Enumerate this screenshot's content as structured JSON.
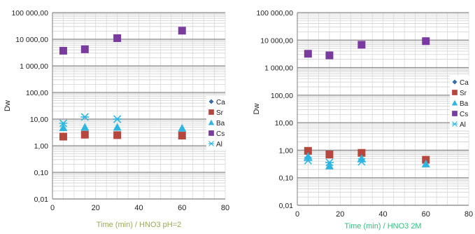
{
  "chart_data": [
    {
      "type": "scatter",
      "yscale": "log",
      "ylim": [
        0.01,
        100000
      ],
      "xlim": [
        0,
        80
      ],
      "xticks": [
        0,
        20,
        40,
        60,
        80
      ],
      "xtick_labels": [
        "0",
        "20",
        "40",
        "60",
        "80"
      ],
      "ytick_labels": [
        "0,01",
        "0,10",
        "1,00",
        "10,00",
        "100,00",
        "1 000,00",
        "10 000,00",
        "100 000,00"
      ],
      "xlabel": "Time (min) / HNO3 pH=2",
      "xlabel_color": "#9aa85a",
      "ylabel": "Dw",
      "grid": true,
      "legend": "right",
      "series": [
        {
          "name": "Ca",
          "marker": "diamond",
          "color": "#3b6ea8",
          "x": [],
          "y": []
        },
        {
          "name": "Sr",
          "marker": "square",
          "color": "#b5473f",
          "x": [
            5,
            15,
            30,
            60
          ],
          "y": [
            2.2,
            2.6,
            2.5,
            2.4
          ]
        },
        {
          "name": "Ba",
          "marker": "triangle",
          "color": "#2fb6e0",
          "x": [
            5,
            15,
            30,
            60
          ],
          "y": [
            4.8,
            5.0,
            5.0,
            4.6
          ]
        },
        {
          "name": "Cs",
          "marker": "square",
          "color": "#7a3b9e",
          "x": [
            5,
            15,
            30,
            60
          ],
          "y": [
            3700,
            4200,
            11000,
            21000
          ]
        },
        {
          "name": "Al",
          "marker": "asterisk",
          "color": "#2fb6e0",
          "x": [
            5,
            15,
            30
          ],
          "y": [
            7.0,
            12.0,
            10.0
          ]
        }
      ]
    },
    {
      "type": "scatter",
      "yscale": "log",
      "ylim": [
        0.01,
        100000
      ],
      "xlim": [
        0,
        80
      ],
      "xticks": [
        0,
        20,
        40,
        60,
        80
      ],
      "xtick_labels": [
        "0",
        "20",
        "40",
        "60",
        "80"
      ],
      "ytick_labels": [
        "0,01",
        "0,10",
        "1,00",
        "10,00",
        "100,00",
        "1 000,00",
        "10 000,00",
        "100 000,00"
      ],
      "xlabel": "Time (min) / HNO3 2M",
      "xlabel_color": "#2fbf7f",
      "ylabel": "Dw",
      "grid": true,
      "legend": "right",
      "series": [
        {
          "name": "Ca",
          "marker": "diamond",
          "color": "#3b6ea8",
          "x": [],
          "y": []
        },
        {
          "name": "Sr",
          "marker": "square",
          "color": "#b5473f",
          "x": [
            5,
            15,
            30,
            60
          ],
          "y": [
            0.95,
            0.7,
            0.8,
            0.45
          ]
        },
        {
          "name": "Ba",
          "marker": "triangle",
          "color": "#2fb6e0",
          "x": [
            5,
            15,
            30,
            60
          ],
          "y": [
            0.6,
            0.27,
            0.5,
            0.32
          ]
        },
        {
          "name": "Cs",
          "marker": "square",
          "color": "#7a3b9e",
          "x": [
            5,
            15,
            30,
            60
          ],
          "y": [
            3200,
            2800,
            6800,
            9200
          ]
        },
        {
          "name": "Al",
          "marker": "asterisk",
          "color": "#2fb6e0",
          "x": [
            5,
            15,
            30
          ],
          "y": [
            0.42,
            0.36,
            0.38
          ]
        }
      ]
    }
  ]
}
